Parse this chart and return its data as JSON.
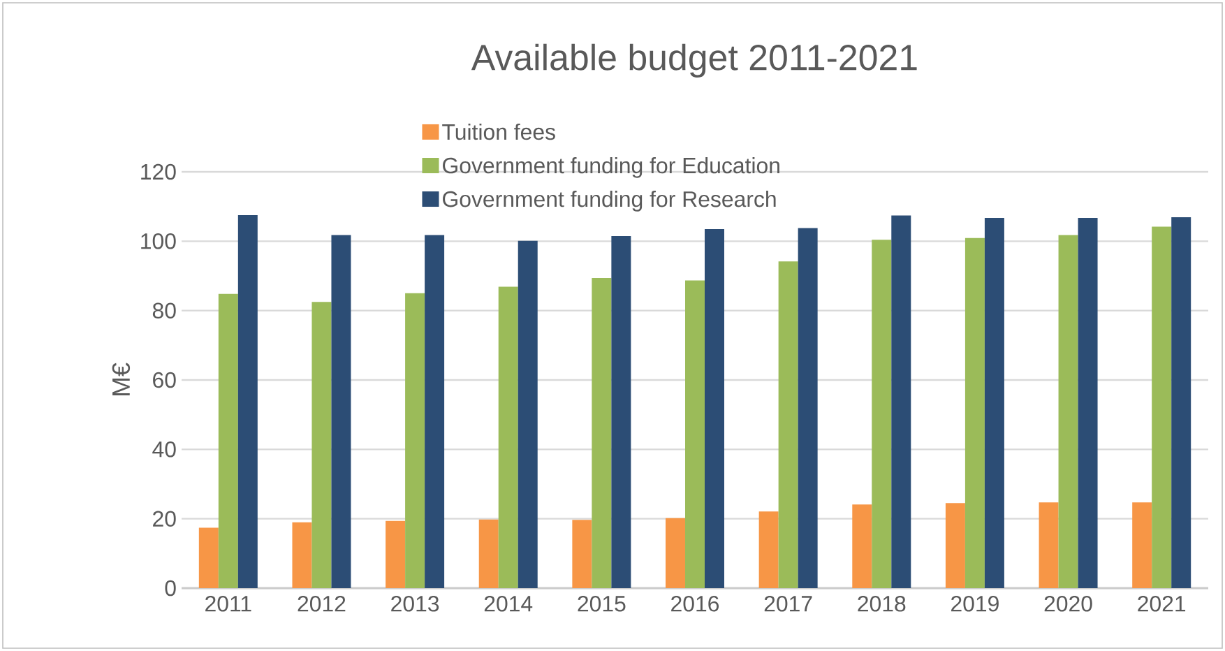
{
  "chart_data": {
    "type": "bar",
    "title": "Available budget 2011-2021",
    "ylabel": "M€",
    "categories": [
      "2011",
      "2012",
      "2013",
      "2014",
      "2015",
      "2016",
      "2017",
      "2018",
      "2019",
      "2020",
      "2021"
    ],
    "series": [
      {
        "name": "Tuition fees",
        "color": "#f79646",
        "values": [
          17.4,
          19.0,
          19.4,
          19.8,
          19.7,
          20.2,
          22.1,
          24.1,
          24.5,
          24.7,
          24.7
        ]
      },
      {
        "name": "Government funding for Education",
        "color": "#9bbb59",
        "values": [
          84.8,
          82.5,
          85.0,
          86.9,
          89.4,
          88.7,
          94.2,
          100.4,
          100.9,
          101.8,
          104.2
        ]
      },
      {
        "name": "Government funding for Research",
        "color": "#2c4d75",
        "values": [
          107.5,
          101.8,
          101.8,
          100.1,
          101.5,
          103.5,
          103.8,
          107.4,
          106.7,
          106.7,
          106.9
        ]
      }
    ],
    "ylim": [
      0,
      120
    ],
    "yticks": [
      0,
      20,
      40,
      60,
      80,
      100,
      120
    ],
    "grid": "y",
    "legend": "top"
  }
}
